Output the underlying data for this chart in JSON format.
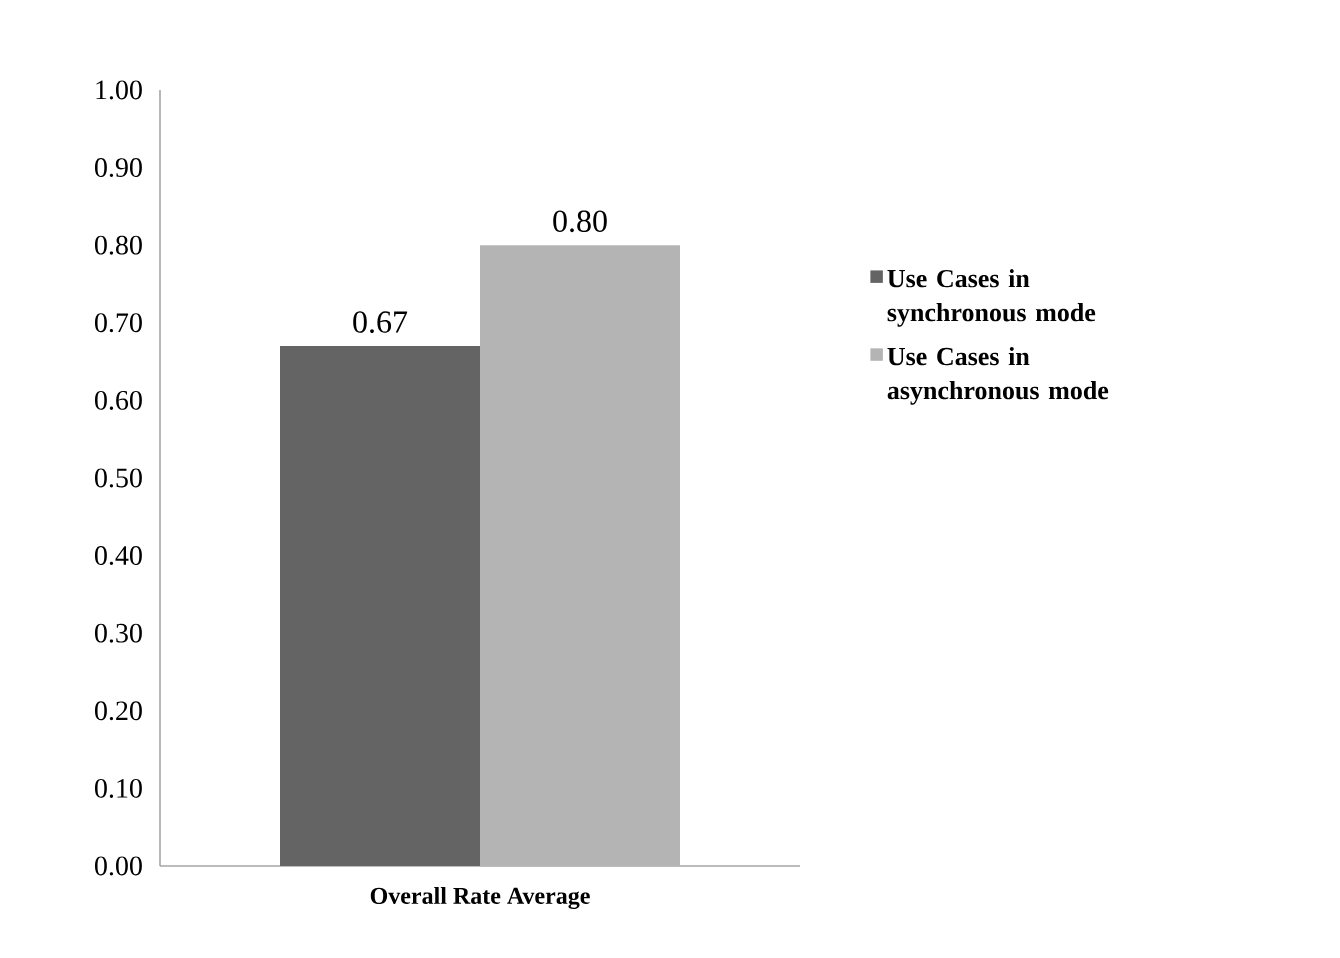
{
  "chart_data": {
    "type": "bar",
    "categories": [
      "Overall Rate Average"
    ],
    "series": [
      {
        "name": "Use Cases in synchronous mode",
        "color": "#646464",
        "values": [
          0.67
        ],
        "value_labels": [
          "0.67"
        ]
      },
      {
        "name": "Use Cases in asynchronous mode",
        "color": "#b4b4b4",
        "values": [
          0.8
        ],
        "value_labels": [
          "0.80"
        ]
      }
    ],
    "ylim": [
      0,
      1
    ],
    "yticks": [
      {
        "value": 0,
        "label": "0.00"
      },
      {
        "value": 0.1,
        "label": "0.10"
      },
      {
        "value": 0.2,
        "label": "0.20"
      },
      {
        "value": 0.3,
        "label": "0.30"
      },
      {
        "value": 0.4,
        "label": "0.40"
      },
      {
        "value": 0.5,
        "label": "0.50"
      },
      {
        "value": 0.6,
        "label": "0.60"
      },
      {
        "value": 0.7,
        "label": "0.70"
      },
      {
        "value": 0.8,
        "label": "0.80"
      },
      {
        "value": 0.9,
        "label": "0.90"
      },
      {
        "value": 1,
        "label": "1.00"
      }
    ],
    "grid": false,
    "legend": "right"
  }
}
